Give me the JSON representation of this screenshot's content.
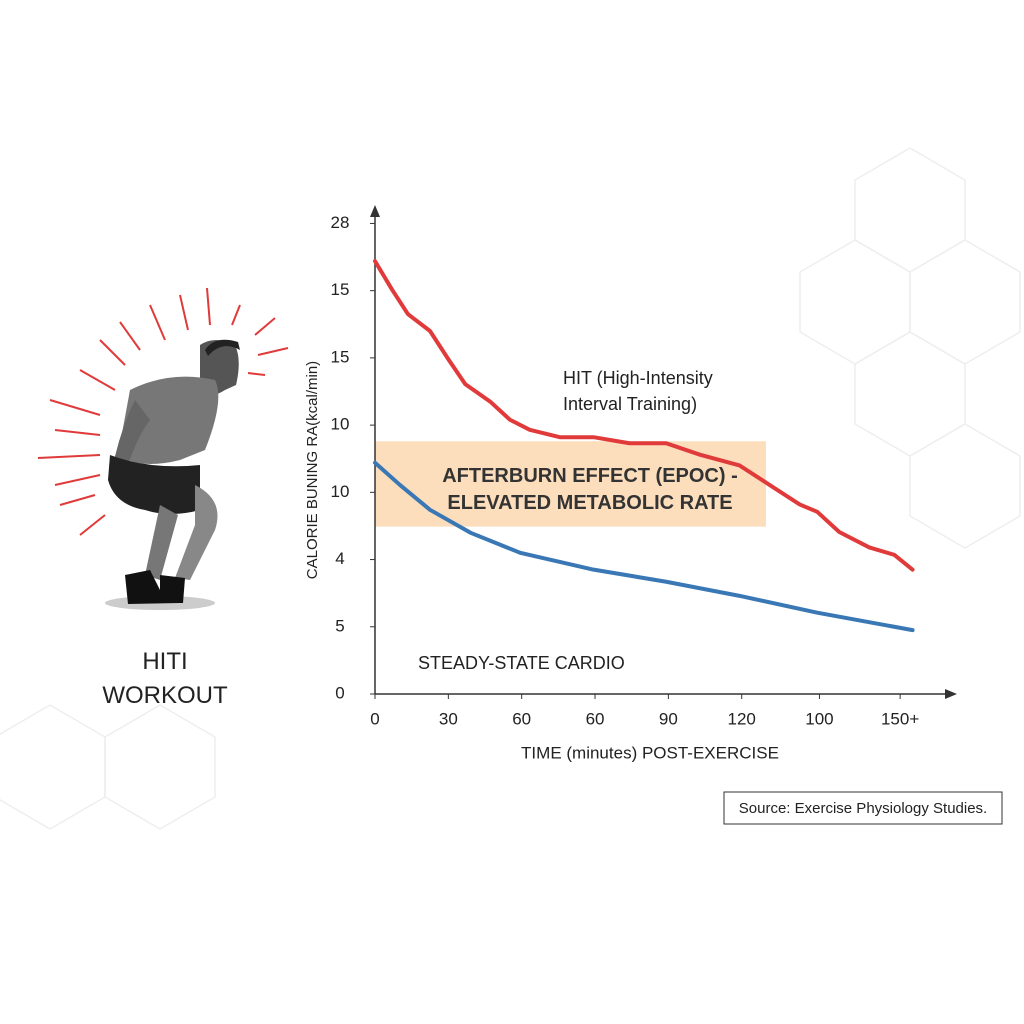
{
  "chart_data": {
    "type": "line",
    "figure_caption": "HITI WORKOUT",
    "ylabel": "CALORIE BUNING RA(kcal/min)",
    "xlabel": "TIME (minutes) POST-EXERCISE",
    "source": "Source: Exercise Physiology Studies.",
    "xlim": [
      0,
      7.84
    ],
    "ylim": [
      0,
      7.2
    ],
    "xticks": [
      {
        "value": 0,
        "label": "0"
      },
      {
        "value": 1,
        "label": "30"
      },
      {
        "value": 2,
        "label": "60"
      },
      {
        "value": 3,
        "label": "60"
      },
      {
        "value": 4,
        "label": "90"
      },
      {
        "value": 5,
        "label": "120"
      },
      {
        "value": 6.06,
        "label": "100"
      },
      {
        "value": 7.16,
        "label": "150+"
      }
    ],
    "yticks": [
      {
        "value": 0,
        "label": "0"
      },
      {
        "value": 1,
        "label": "5"
      },
      {
        "value": 2,
        "label": "4"
      },
      {
        "value": 3,
        "label": "10"
      },
      {
        "value": 4,
        "label": "10"
      },
      {
        "value": 5,
        "label": "15"
      },
      {
        "value": 6,
        "label": "15"
      },
      {
        "value": 7,
        "label": "28"
      }
    ],
    "band": {
      "label": "AFTERBURN EFFECT (EPOC) - ELEVATED METABOLIC RATE",
      "color": "#fbd7b0",
      "x": [
        0,
        5.33
      ],
      "y": [
        2.49,
        3.76
      ]
    },
    "series": [
      {
        "name": "HIT (High-Intensity Interval Training)",
        "color": "#e03a3a",
        "x": [
          0,
          0.23,
          0.45,
          0.75,
          1,
          1.23,
          1.57,
          1.84,
          2.11,
          2.52,
          2.98,
          3.47,
          3.97,
          4.43,
          4.97,
          5.38,
          5.79,
          6.03,
          6.33,
          6.74,
          7.08,
          7.33
        ],
        "values": [
          6.44,
          6.02,
          5.65,
          5.4,
          4.98,
          4.61,
          4.35,
          4.08,
          3.93,
          3.82,
          3.82,
          3.73,
          3.73,
          3.56,
          3.4,
          3.11,
          2.82,
          2.71,
          2.41,
          2.18,
          2.07,
          1.85
        ]
      },
      {
        "name": "STEADY-STATE CARDIO",
        "color": "#3a78b5",
        "x": [
          0,
          0.34,
          0.75,
          1.3,
          1.98,
          2.98,
          3.97,
          4.97,
          6.03,
          7.33
        ],
        "values": [
          3.44,
          3.11,
          2.74,
          2.4,
          2.1,
          1.85,
          1.67,
          1.46,
          1.21,
          0.95
        ]
      }
    ]
  }
}
